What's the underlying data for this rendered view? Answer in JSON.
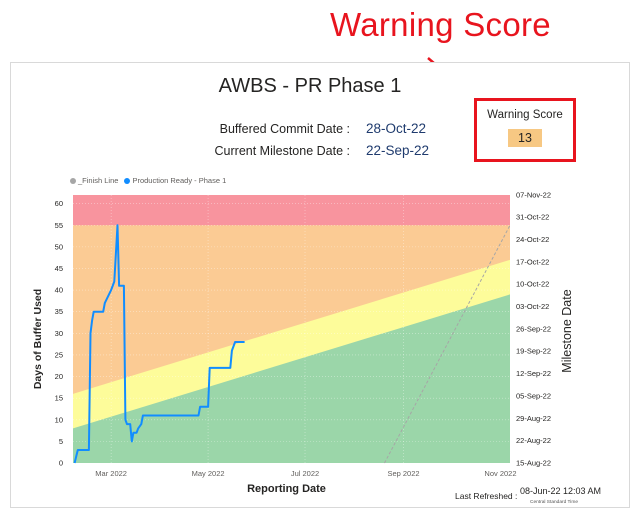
{
  "callout": {
    "title": "Warning Score"
  },
  "report": {
    "title": "AWBS - PR Phase 1",
    "buffered_commit_label": "Buffered Commit Date :",
    "buffered_commit_value": "28-Oct-22",
    "current_milestone_label": "Current Milestone Date :",
    "current_milestone_value": "22-Sep-22"
  },
  "warning_card": {
    "label": "Warning Score",
    "value": "13",
    "value_bg": "#f7c883",
    "border_color": "#e8141e"
  },
  "legend": {
    "items": [
      {
        "label": "_Finish Line",
        "color": "#a6a6a6"
      },
      {
        "label": "Production Ready - Phase 1",
        "color": "#118dff"
      }
    ]
  },
  "footer": {
    "last_refreshed_label": "Last Refreshed :",
    "last_refreshed_value": "08-Jun-22 12:03 AM",
    "timezone": "Central Standard Time"
  },
  "chart_data": {
    "type": "line",
    "xlabel": "Reporting Date",
    "ylabel": "Days of Buffer Used",
    "y2label": "Milestone Date",
    "x_tick_labels": [
      "Mar 2022",
      "May 2022",
      "Jul 2022",
      "Sep 2022",
      "Nov 2022"
    ],
    "x_tick_dates": [
      "2022-03-01",
      "2022-05-01",
      "2022-07-01",
      "2022-09-01",
      "2022-11-01"
    ],
    "xlim": [
      "2022-02-05",
      "2022-11-07"
    ],
    "ylim": [
      0,
      62
    ],
    "y_ticks": [
      0,
      5,
      10,
      15,
      20,
      25,
      30,
      35,
      40,
      45,
      50,
      55,
      60
    ],
    "y2_tick_labels": [
      "15-Aug-22",
      "22-Aug-22",
      "29-Aug-22",
      "05-Sep-22",
      "12-Sep-22",
      "19-Sep-22",
      "26-Sep-22",
      "03-Oct-22",
      "10-Oct-22",
      "17-Oct-22",
      "24-Oct-22",
      "31-Oct-22",
      "07-Nov-22"
    ],
    "y2_ticks": [
      0,
      5.2,
      10.3,
      15.5,
      20.7,
      25.9,
      31,
      36.2,
      41.4,
      46.5,
      51.7,
      56.9,
      62
    ],
    "zones": {
      "colors": {
        "red": "#f8949e",
        "orange": "#fbcb94",
        "yellow": "#fdfc9a",
        "green": "#9bd6a9"
      },
      "red_min": 55,
      "yellow_top": [
        [
          "2022-02-05",
          16
        ],
        [
          "2022-11-07",
          47
        ]
      ],
      "green_top": [
        [
          "2022-02-05",
          8
        ],
        [
          "2022-11-07",
          39
        ]
      ]
    },
    "grid": true,
    "grid_x_dates": [
      "2022-03-01",
      "2022-05-01",
      "2022-07-01",
      "2022-09-01"
    ],
    "series": [
      {
        "name": "Production Ready - Phase 1",
        "color": "#118dff",
        "points": [
          [
            "2022-02-06",
            0
          ],
          [
            "2022-02-08",
            3
          ],
          [
            "2022-02-13",
            3
          ],
          [
            "2022-02-15",
            3
          ],
          [
            "2022-02-16",
            30
          ],
          [
            "2022-02-17",
            33
          ],
          [
            "2022-02-18",
            35
          ],
          [
            "2022-02-24",
            35
          ],
          [
            "2022-02-25",
            37
          ],
          [
            "2022-03-01",
            40
          ],
          [
            "2022-03-03",
            42
          ],
          [
            "2022-03-05",
            55
          ],
          [
            "2022-03-06",
            41
          ],
          [
            "2022-03-09",
            41
          ],
          [
            "2022-03-10",
            10
          ],
          [
            "2022-03-11",
            9
          ],
          [
            "2022-03-13",
            9
          ],
          [
            "2022-03-14",
            5
          ],
          [
            "2022-03-15",
            7
          ],
          [
            "2022-03-17",
            7
          ],
          [
            "2022-03-18",
            8
          ],
          [
            "2022-03-20",
            9
          ],
          [
            "2022-03-21",
            11
          ],
          [
            "2022-04-12",
            11
          ],
          [
            "2022-04-25",
            11
          ],
          [
            "2022-04-26",
            13
          ],
          [
            "2022-04-29",
            13
          ],
          [
            "2022-05-01",
            13
          ],
          [
            "2022-05-02",
            22
          ],
          [
            "2022-05-15",
            22
          ],
          [
            "2022-05-16",
            26
          ],
          [
            "2022-05-18",
            28
          ],
          [
            "2022-05-24",
            28
          ]
        ]
      },
      {
        "name": "_Finish Line",
        "color": "#a6a6a6",
        "dashed": true,
        "points": [
          [
            "2022-08-20",
            0
          ],
          [
            "2022-11-07",
            55
          ]
        ]
      }
    ]
  }
}
